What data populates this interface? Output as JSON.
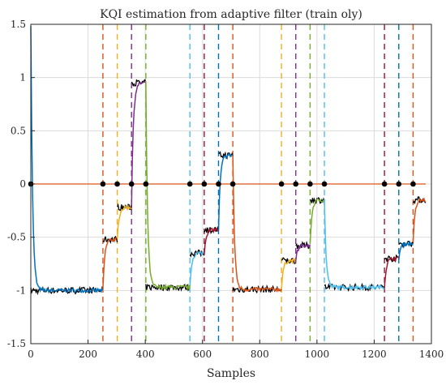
{
  "chart_data": {
    "type": "line",
    "title": "KQI estimation from adaptive filter (train oly)",
    "xlabel": "Samples",
    "ylabel": "",
    "xlim": [
      0,
      1400
    ],
    "ylim": [
      -1.5,
      1.5
    ],
    "xticks": [
      0,
      200,
      400,
      600,
      800,
      1000,
      1200,
      1400
    ],
    "yticks": [
      -1.5,
      -1,
      -0.5,
      0,
      0.5,
      1,
      1.5
    ],
    "xtick_labels": [
      "0",
      "200",
      "400",
      "600",
      "800",
      "1000",
      "1200",
      "1400"
    ],
    "ytick_labels": [
      "-1.5",
      "-1",
      "-0.5",
      "0",
      "0.5",
      "1",
      "1.5"
    ],
    "grid": true,
    "change_points": [
      0,
      252,
      302,
      352,
      402,
      556,
      606,
      656,
      706,
      876,
      926,
      976,
      1026,
      1236,
      1286,
      1336
    ],
    "change_point_line_colors": [
      "#0072BD",
      "#D95319",
      "#EDB120",
      "#7E2F8E",
      "#77AC30",
      "#4DBEEE",
      "#A2142F",
      "#0072BD",
      "#D95319",
      "#EDB120",
      "#7E2F8E",
      "#77AC30",
      "#4DBEEE",
      "#A2142F",
      "#0072BD",
      "#D95319"
    ],
    "segments": [
      {
        "x0": 0,
        "x1": 252,
        "level": -1.0,
        "color": "#0072BD"
      },
      {
        "x0": 252,
        "x1": 302,
        "level": -0.52,
        "color": "#D95319"
      },
      {
        "x0": 302,
        "x1": 352,
        "level": -0.22,
        "color": "#EDB120"
      },
      {
        "x0": 352,
        "x1": 402,
        "level": 0.95,
        "color": "#7E2F8E"
      },
      {
        "x0": 402,
        "x1": 556,
        "level": -0.97,
        "color": "#77AC30"
      },
      {
        "x0": 556,
        "x1": 606,
        "level": -0.65,
        "color": "#4DBEEE"
      },
      {
        "x0": 606,
        "x1": 656,
        "level": -0.43,
        "color": "#A2142F"
      },
      {
        "x0": 656,
        "x1": 706,
        "level": 0.27,
        "color": "#0072BD"
      },
      {
        "x0": 706,
        "x1": 876,
        "level": -0.99,
        "color": "#D95319"
      },
      {
        "x0": 876,
        "x1": 926,
        "level": -0.72,
        "color": "#EDB120"
      },
      {
        "x0": 926,
        "x1": 976,
        "level": -0.58,
        "color": "#7E2F8E"
      },
      {
        "x0": 976,
        "x1": 1026,
        "level": -0.15,
        "color": "#77AC30"
      },
      {
        "x0": 1026,
        "x1": 1236,
        "level": -0.97,
        "color": "#4DBEEE"
      },
      {
        "x0": 1236,
        "x1": 1286,
        "level": -0.7,
        "color": "#A2142F"
      },
      {
        "x0": 1286,
        "x1": 1336,
        "level": -0.56,
        "color": "#0072BD"
      },
      {
        "x0": 1336,
        "x1": 1380,
        "level": -0.15,
        "color": "#D95319"
      }
    ],
    "zero_line": {
      "y": 0,
      "x0": 0,
      "x1": 1380,
      "color": "#D95319"
    },
    "marker_color": "#000000",
    "true_signal_color": "#000000"
  }
}
